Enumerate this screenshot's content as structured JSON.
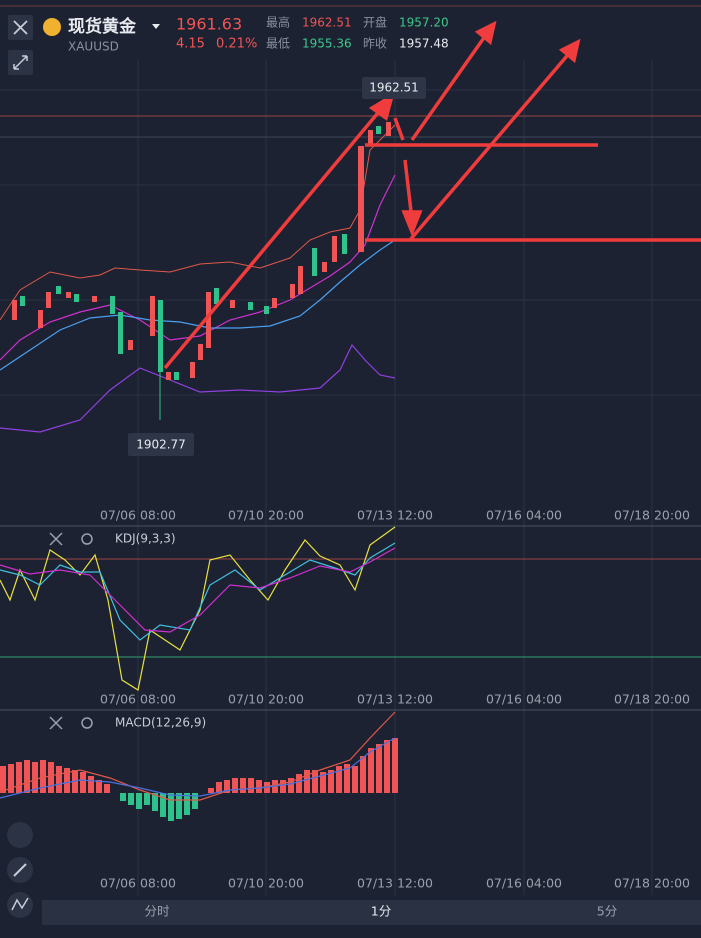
{
  "header": {
    "name": "现货黄金",
    "symbol": "XAUUSD",
    "price": "1961.63",
    "change": "4.15",
    "change_pct": "0.21%",
    "high_label": "最高",
    "high": "1962.51",
    "open_label": "开盘",
    "open": "1957.20",
    "low_label": "最低",
    "low": "1955.36",
    "prev_label": "昨收",
    "prev": "1957.48"
  },
  "main_chart": {
    "high_callout": "1962.51",
    "low_callout": "1902.77"
  },
  "time_axis": [
    "07/06 08:00",
    "07/10 20:00",
    "07/13 12:00",
    "07/16 04:00",
    "07/18 20:00"
  ],
  "kdj": {
    "title": "KDJ(9,3,3)"
  },
  "macd": {
    "title": "MACD(12,26,9)"
  },
  "tabs": [
    "分时",
    "1分",
    "5分"
  ]
}
